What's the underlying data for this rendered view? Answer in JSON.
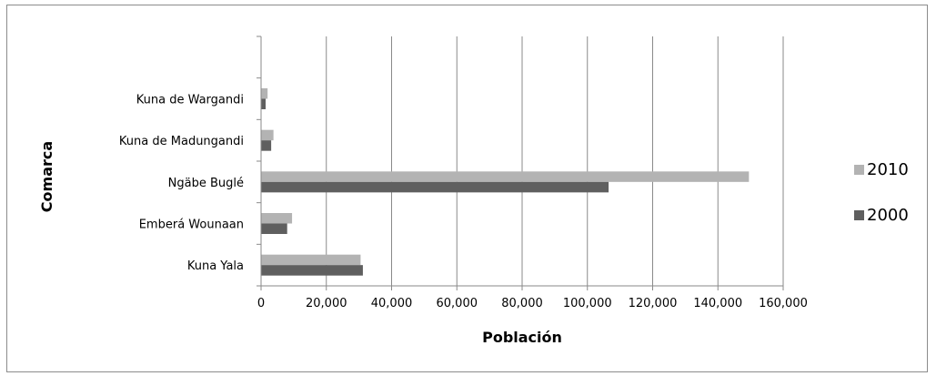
{
  "chart_data": {
    "type": "bar",
    "orientation": "horizontal",
    "categories": [
      "Kuna Yala",
      "Emberá Wounaan",
      "Ngäbe Buglé",
      "Kuna de Madungandi",
      "Kuna de Wargandi"
    ],
    "series": [
      {
        "name": "2010",
        "color": "#b3b3b3",
        "values": [
          30500,
          9500,
          149500,
          3800,
          2000
        ]
      },
      {
        "name": "2000",
        "color": "#5f5f5f",
        "values": [
          31200,
          8000,
          106500,
          3100,
          1400
        ]
      }
    ],
    "xlabel": "Población",
    "ylabel": "Comarca",
    "xlim": [
      0,
      160000
    ],
    "xticks": [
      "0",
      "20,000",
      "40,000",
      "60,000",
      "80,000",
      "100,000",
      "120,000",
      "140,000",
      "160,000"
    ],
    "grid": "vertical major gridlines",
    "legend_position": "right",
    "legend_entries": [
      "2010",
      "2000"
    ]
  }
}
